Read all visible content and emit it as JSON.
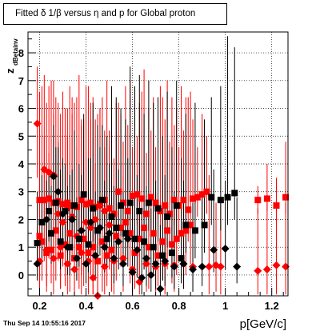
{
  "title": "Fitted δ 1/β versus η and p for Global proton",
  "timestamp": "Thu Sep 14 10:55:16 2017",
  "chart_data": {
    "type": "scatter",
    "title": "Fitted δ 1/β versus η and p for Global proton",
    "xlabel": "p[GeV/c]",
    "ylabel_main": "z",
    "ylabel_sub": "dBetainv",
    "xlim": [
      0.15,
      1.27
    ],
    "ylim": [
      -0.75,
      8.75
    ],
    "x_ticks": [
      0.2,
      0.4,
      0.6,
      0.8,
      1.0,
      1.2
    ],
    "x_tick_labels": [
      "0.2",
      "0.4",
      "0.6",
      "0.8",
      "1",
      "1.2"
    ],
    "y_ticks": [
      0,
      1,
      2,
      3,
      4,
      5,
      6,
      7,
      8
    ],
    "y_tick_labels": [
      "0",
      "1",
      "2",
      "3",
      "4",
      "5",
      "6",
      "7",
      "8"
    ],
    "grid": true,
    "colors": {
      "red": "#ff0000",
      "black": "#000000"
    },
    "series": [
      {
        "color": "#ff0000",
        "marker": "square",
        "points": [
          [
            0.2,
            2.7,
            0.3,
            4.8
          ],
          [
            0.22,
            2.7,
            0.5,
            5.0
          ],
          [
            0.24,
            2.75,
            0.6,
            4.4
          ],
          [
            0.26,
            2.6,
            0.9,
            5.8
          ],
          [
            0.28,
            2.65,
            1.1,
            4.8
          ],
          [
            0.3,
            2.55,
            0.5,
            4.2
          ],
          [
            0.32,
            2.6,
            0.8,
            5.0
          ],
          [
            0.34,
            2.5,
            1.0,
            6.4
          ],
          [
            0.36,
            2.45,
            0.7,
            4.6
          ],
          [
            0.38,
            2.7,
            1.2,
            5.4
          ],
          [
            0.4,
            2.55,
            1.0,
            4.4
          ],
          [
            0.42,
            2.6,
            0.6,
            5.6
          ],
          [
            0.44,
            2.45,
            0.9,
            4.0
          ],
          [
            0.46,
            2.55,
            1.4,
            6.0
          ],
          [
            0.48,
            2.7,
            1.0,
            4.6
          ],
          [
            0.5,
            2.4,
            1.3,
            5.2
          ],
          [
            0.52,
            2.2,
            0.8,
            4.2
          ],
          [
            0.54,
            3.0,
            1.6,
            6.2
          ],
          [
            0.56,
            2.6,
            1.2,
            4.8
          ],
          [
            0.58,
            2.3,
            1.0,
            5.4
          ],
          [
            0.6,
            2.85,
            1.5,
            4.6
          ],
          [
            0.62,
            2.9,
            1.8,
            5.0
          ],
          [
            0.64,
            2.75,
            1.3,
            6.6
          ],
          [
            0.66,
            2.2,
            0.9,
            4.4
          ],
          [
            0.68,
            2.8,
            1.6,
            5.2
          ],
          [
            0.7,
            2.6,
            1.4,
            4.6
          ],
          [
            0.72,
            2.3,
            1.1,
            6.8
          ],
          [
            0.74,
            2.5,
            1.5,
            5.6
          ],
          [
            0.76,
            2.2,
            1.0,
            4.8
          ],
          [
            0.78,
            2.7,
            1.8,
            5.4
          ],
          [
            0.8,
            2.5,
            1.5,
            4.6
          ],
          [
            0.82,
            2.7,
            1.6,
            5.2
          ],
          [
            0.84,
            2.35,
            1.2,
            6.4
          ],
          [
            0.86,
            2.75,
            1.9,
            5.6
          ],
          [
            0.88,
            2.8,
            2.1,
            4.6
          ],
          [
            0.9,
            2.9,
            2.0,
            5.8
          ],
          [
            0.92,
            3.0,
            2.2,
            5.0
          ],
          [
            1.14,
            2.7,
            2.2,
            3.2
          ],
          [
            1.18,
            2.75,
            2.3,
            4.0
          ],
          [
            1.22,
            2.5,
            2.0,
            3.5
          ],
          [
            1.26,
            2.8,
            2.2,
            4.8
          ],
          [
            0.2,
            1.4,
            0.0,
            6.6
          ],
          [
            0.21,
            1.2,
            -0.2,
            6.8
          ],
          [
            0.23,
            0.8,
            -0.4,
            6.2
          ],
          [
            0.25,
            0.9,
            -0.3,
            7.0
          ],
          [
            0.27,
            1.6,
            -0.2,
            6.4
          ],
          [
            0.29,
            0.7,
            -0.5,
            5.8
          ],
          [
            0.31,
            1.1,
            -0.4,
            6.0
          ],
          [
            0.33,
            1.5,
            -0.6,
            6.8
          ],
          [
            0.35,
            0.6,
            -0.7,
            6.2
          ],
          [
            0.37,
            1.0,
            -0.5,
            7.2
          ],
          [
            0.39,
            1.3,
            -0.4,
            5.6
          ],
          [
            0.41,
            0.8,
            -0.6,
            6.8
          ],
          [
            0.43,
            1.0,
            -0.7,
            6.4
          ],
          [
            0.45,
            0.5,
            -0.6,
            5.8
          ],
          [
            0.47,
            1.2,
            -0.6,
            6.4
          ],
          [
            0.49,
            0.7,
            -0.4,
            7.0
          ],
          [
            0.51,
            0.9,
            -0.6,
            5.8
          ],
          [
            0.53,
            1.4,
            -0.2,
            6.2
          ],
          [
            0.55,
            1.7,
            0.3,
            5.8
          ],
          [
            0.57,
            1.9,
            0.5,
            6.8
          ],
          [
            0.59,
            1.5,
            -0.3,
            7.0
          ],
          [
            0.61,
            0.8,
            -0.5,
            6.4
          ],
          [
            0.63,
            1.3,
            -0.2,
            6.2
          ],
          [
            0.65,
            1.7,
            0.2,
            7.4
          ],
          [
            0.67,
            1.0,
            -0.5,
            6.0
          ],
          [
            0.69,
            1.5,
            0.0,
            6.4
          ],
          [
            0.71,
            0.7,
            -0.4,
            5.6
          ],
          [
            0.73,
            1.2,
            -0.2,
            6.4
          ],
          [
            0.75,
            1.6,
            0.2,
            7.0
          ],
          [
            0.77,
            1.1,
            -0.3,
            6.4
          ],
          [
            0.79,
            1.3,
            0.0,
            6.0
          ],
          [
            0.81,
            1.5,
            -0.2,
            6.8
          ],
          [
            0.83,
            1.6,
            0.0,
            6.4
          ],
          [
            0.85,
            1.8,
            0.4,
            6.6
          ]
        ]
      },
      {
        "color": "#ff0000",
        "marker": "diamond",
        "points": [
          [
            0.19,
            5.45,
            3.5,
            7.5
          ],
          [
            0.22,
            3.8,
            2.0,
            7.2
          ],
          [
            0.24,
            3.7,
            2.2,
            6.8
          ],
          [
            0.26,
            3.6,
            2.0,
            7.0
          ],
          [
            0.28,
            2.2,
            0.5,
            6.2
          ],
          [
            0.3,
            1.9,
            0.3,
            6.6
          ],
          [
            0.32,
            2.4,
            0.8,
            6.0
          ],
          [
            0.34,
            2.1,
            0.5,
            5.8
          ],
          [
            0.36,
            1.4,
            -0.2,
            6.4
          ],
          [
            0.38,
            1.6,
            0.0,
            5.6
          ],
          [
            0.4,
            1.9,
            0.4,
            6.8
          ],
          [
            0.42,
            1.7,
            0.0,
            6.2
          ],
          [
            0.44,
            2.0,
            0.5,
            5.6
          ],
          [
            0.46,
            2.5,
            1.0,
            6.0
          ],
          [
            0.48,
            2.3,
            0.8,
            5.2
          ],
          [
            0.5,
            1.8,
            0.2,
            4.6
          ],
          [
            0.2,
            0.5,
            -0.7,
            3.4
          ],
          [
            0.23,
            0.9,
            -0.6,
            3.8
          ],
          [
            0.26,
            0.6,
            -0.7,
            3.2
          ],
          [
            0.29,
            1.0,
            -0.5,
            3.6
          ],
          [
            0.32,
            0.4,
            -0.7,
            2.8
          ],
          [
            0.35,
            0.2,
            -0.7,
            3.0
          ],
          [
            0.38,
            0.8,
            -0.7,
            3.4
          ],
          [
            0.41,
            0.5,
            -0.7,
            2.6
          ],
          [
            0.43,
            -0.1,
            -0.7,
            2.4
          ],
          [
            0.45,
            -0.75,
            -0.75,
            2.0
          ],
          [
            0.48,
            0.3,
            -0.7,
            3.0
          ],
          [
            0.52,
            0.5,
            -0.7,
            3.0
          ],
          [
            0.56,
            0.6,
            -0.6,
            3.6
          ],
          [
            0.6,
            0.2,
            -0.7,
            2.6
          ],
          [
            0.63,
            -0.25,
            -0.7,
            2.2
          ],
          [
            0.66,
            0.4,
            -0.6,
            2.8
          ],
          [
            0.7,
            0.3,
            -0.6,
            3.0
          ],
          [
            0.74,
            0.4,
            -0.7,
            3.4
          ],
          [
            0.78,
            0.35,
            -0.6,
            2.8
          ],
          [
            0.82,
            0.4,
            -0.5,
            3.0
          ],
          [
            0.86,
            0.3,
            -0.6,
            2.6
          ],
          [
            0.93,
            0.3,
            -0.7,
            3.6
          ],
          [
            0.96,
            0.35,
            -0.6,
            2.6
          ],
          [
            0.98,
            0.3,
            -0.7,
            2.8
          ],
          [
            1.14,
            0.15,
            -0.7,
            2.4
          ],
          [
            1.18,
            0.2,
            -0.7,
            2.8
          ],
          [
            1.22,
            0.35,
            -0.7,
            3.2
          ],
          [
            1.26,
            0.3,
            -0.7,
            2.6
          ]
        ]
      },
      {
        "color": "#000000",
        "marker": "square",
        "points": [
          [
            0.19,
            1.15,
            0.5,
            3.0
          ],
          [
            0.24,
            2.3,
            1.2,
            3.8
          ],
          [
            0.27,
            2.6,
            1.5,
            4.6
          ],
          [
            0.31,
            2.3,
            1.0,
            4.0
          ],
          [
            0.35,
            2.5,
            1.4,
            5.2
          ],
          [
            0.39,
            2.9,
            1.9,
            5.8
          ],
          [
            0.43,
            2.4,
            1.2,
            6.2
          ],
          [
            0.47,
            2.7,
            1.6,
            5.4
          ],
          [
            0.51,
            2.1,
            1.0,
            6.8
          ],
          [
            0.55,
            2.5,
            1.4,
            6.0
          ],
          [
            0.59,
            2.6,
            1.5,
            7.5
          ],
          [
            0.63,
            2.3,
            1.2,
            7.2
          ],
          [
            0.67,
            2.6,
            1.6,
            7.0
          ],
          [
            0.71,
            2.4,
            1.2,
            6.4
          ],
          [
            0.75,
            2.1,
            1.0,
            6.6
          ],
          [
            0.79,
            2.5,
            1.4,
            7.0
          ],
          [
            0.83,
            1.8,
            0.8,
            5.8
          ],
          [
            0.87,
            1.6,
            0.6,
            6.2
          ],
          [
            0.91,
            1.8,
            0.8,
            5.6
          ],
          [
            0.94,
            2.8,
            1.8,
            6.4
          ],
          [
            0.98,
            2.7,
            1.6,
            6.8
          ],
          [
            1.01,
            2.8,
            1.8,
            8.6
          ],
          [
            1.04,
            2.95,
            2.0,
            8.2
          ],
          [
            0.21,
            1.9,
            0.6,
            3.6
          ],
          [
            0.25,
            1.5,
            0.4,
            3.2
          ],
          [
            0.29,
            1.2,
            0.2,
            3.8
          ],
          [
            0.33,
            1.0,
            0.0,
            3.6
          ],
          [
            0.37,
            1.3,
            0.3,
            4.0
          ],
          [
            0.41,
            1.1,
            0.1,
            4.2
          ],
          [
            0.45,
            1.6,
            0.6,
            5.4
          ],
          [
            0.49,
            1.3,
            0.3,
            5.0
          ],
          [
            0.53,
            1.7,
            0.7,
            6.4
          ],
          [
            0.57,
            1.5,
            0.5,
            5.6
          ],
          [
            0.61,
            1.3,
            0.3,
            6.8
          ],
          [
            0.65,
            1.2,
            0.2,
            5.8
          ],
          [
            0.69,
            1.0,
            0.0,
            6.2
          ],
          [
            0.73,
            0.7,
            -0.2,
            5.0
          ],
          [
            0.77,
            0.8,
            -0.1,
            4.6
          ],
          [
            0.81,
            0.6,
            -0.3,
            4.2
          ]
        ]
      },
      {
        "color": "#000000",
        "marker": "diamond",
        "points": [
          [
            0.19,
            0.4,
            -0.2,
            1.6
          ],
          [
            0.23,
            2.0,
            1.0,
            3.4
          ],
          [
            0.26,
            3.55,
            2.6,
            5.4
          ],
          [
            0.3,
            2.2,
            1.2,
            4.2
          ],
          [
            0.34,
            2.0,
            1.0,
            3.8
          ],
          [
            0.38,
            1.6,
            0.6,
            3.6
          ],
          [
            0.42,
            1.9,
            0.9,
            4.2
          ],
          [
            0.46,
            1.7,
            0.7,
            4.6
          ],
          [
            0.5,
            1.5,
            0.5,
            4.0
          ],
          [
            0.54,
            1.2,
            0.2,
            3.8
          ],
          [
            0.58,
            1.3,
            0.3,
            4.2
          ],
          [
            0.62,
            0.9,
            -0.1,
            3.6
          ],
          [
            0.66,
            0.6,
            -0.4,
            3.2
          ],
          [
            0.7,
            0.4,
            -0.5,
            3.4
          ],
          [
            0.74,
            0.5,
            -0.4,
            3.6
          ],
          [
            0.78,
            0.3,
            -0.5,
            3.0
          ],
          [
            0.82,
            0.4,
            -0.5,
            3.4
          ],
          [
            0.86,
            0.2,
            -0.6,
            2.6
          ],
          [
            0.9,
            0.3,
            -0.4,
            3.0
          ],
          [
            0.95,
            0.9,
            0.1,
            3.8
          ],
          [
            1.0,
            0.95,
            0.2,
            3.4
          ],
          [
            1.05,
            0.3,
            -0.3,
            2.8
          ],
          [
            0.28,
            3.0,
            2.0,
            4.6
          ],
          [
            0.32,
            1.0,
            0.0,
            3.2
          ],
          [
            0.36,
            0.6,
            -0.2,
            2.8
          ],
          [
            0.4,
            0.4,
            -0.3,
            2.6
          ],
          [
            0.44,
            0.7,
            -0.2,
            3.0
          ],
          [
            0.48,
            1.0,
            0.1,
            3.4
          ],
          [
            0.52,
            0.6,
            -0.3,
            3.2
          ],
          [
            0.56,
            0.4,
            -0.4,
            3.0
          ],
          [
            0.6,
            0.1,
            -0.6,
            2.6
          ],
          [
            0.64,
            -0.1,
            -0.7,
            2.2
          ],
          [
            0.68,
            0.0,
            -0.6,
            2.4
          ],
          [
            0.72,
            -0.5,
            -0.75,
            1.8
          ]
        ]
      }
    ]
  }
}
